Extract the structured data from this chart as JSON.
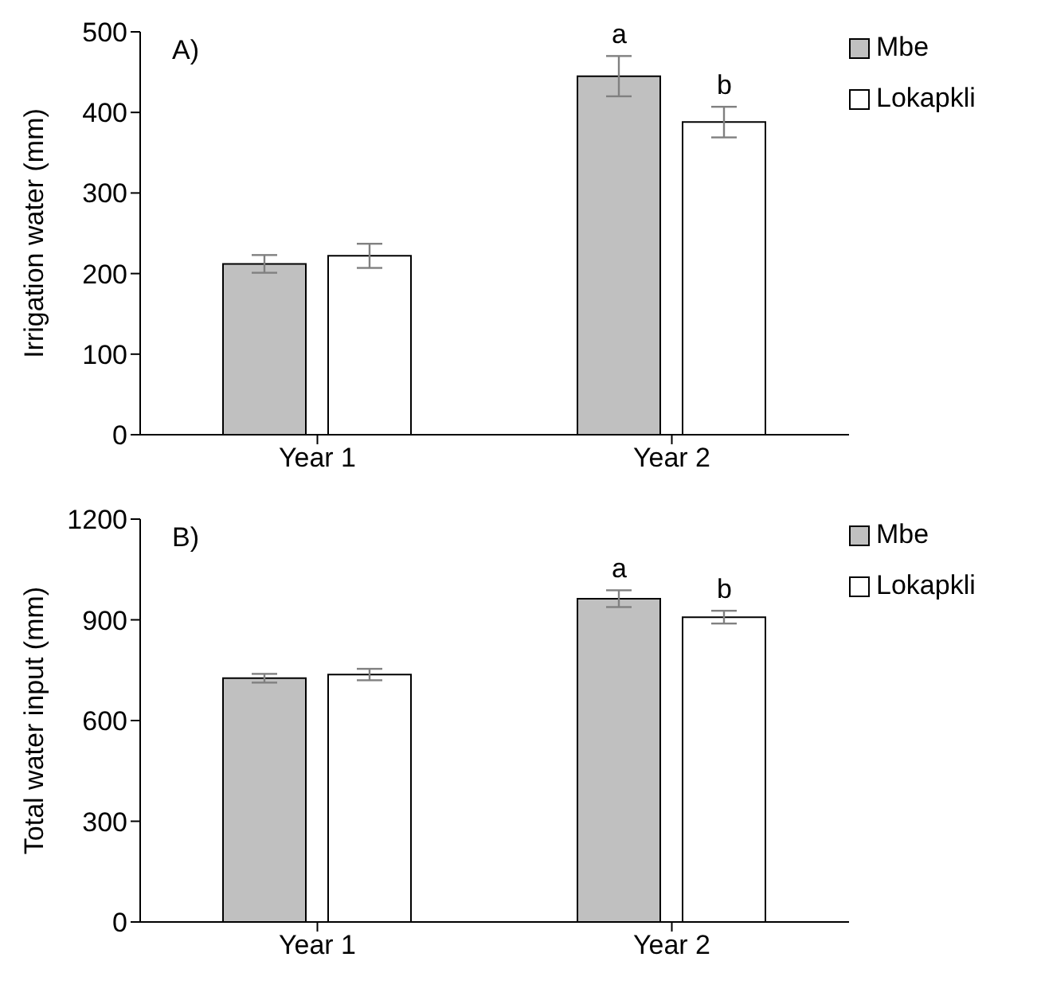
{
  "chart_data": [
    {
      "type": "bar",
      "title": "A)",
      "ylabel": "Irrigation water (mm)",
      "categories": [
        "Year 1",
        "Year 2"
      ],
      "series": [
        {
          "name": "Mbe",
          "color": "#c0c0c0",
          "values": [
            212,
            445
          ],
          "errors": [
            11,
            25
          ]
        },
        {
          "name": "Lokapkli",
          "color": "#ffffff",
          "values": [
            222,
            388
          ],
          "errors": [
            15,
            19
          ]
        }
      ],
      "ylim": [
        0,
        500
      ],
      "yticks": [
        0,
        100,
        200,
        300,
        400,
        500
      ],
      "grid": false,
      "legend": "top right",
      "annotations": [
        "a",
        "b"
      ]
    },
    {
      "type": "bar",
      "title": "B)",
      "ylabel": "Total water input  (mm)",
      "categories": [
        "Year 1",
        "Year 2"
      ],
      "series": [
        {
          "name": "Mbe",
          "color": "#c0c0c0",
          "values": [
            726,
            963
          ],
          "errors": [
            13,
            25
          ]
        },
        {
          "name": "Lokapkli",
          "color": "#ffffff",
          "values": [
            737,
            908
          ],
          "errors": [
            17,
            19
          ]
        }
      ],
      "ylim": [
        0,
        1200
      ],
      "yticks": [
        0,
        300,
        600,
        900,
        1200
      ],
      "grid": false,
      "legend": "top right",
      "annotations": [
        "a",
        "b"
      ]
    }
  ]
}
